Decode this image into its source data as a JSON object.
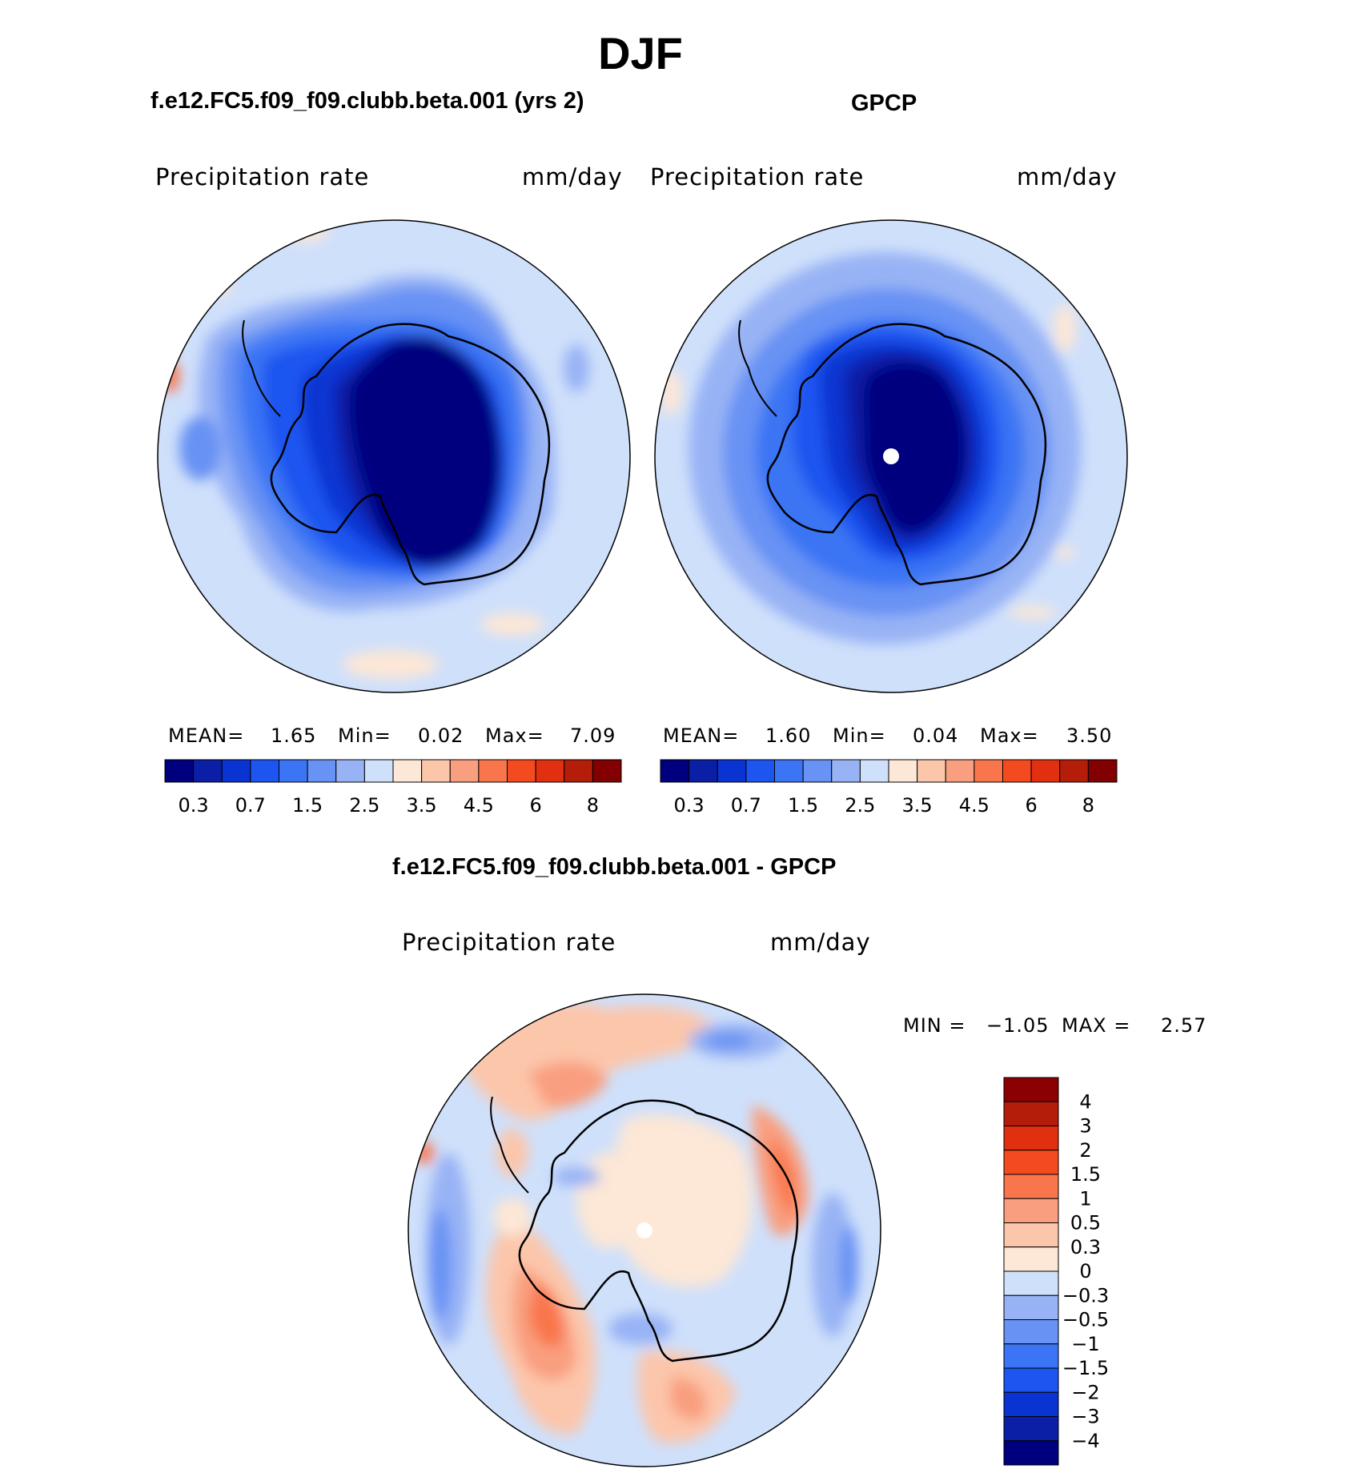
{
  "figure": {
    "season": "DJF",
    "panel_model": {
      "title": "f.e12.FC5.f09_f09.clubb.beta.001 (yrs 2)",
      "variable": "Precipitation rate",
      "units": "mm/day",
      "stats": {
        "mean_label": "MEAN=",
        "mean": "1.65",
        "min_label": "Min=",
        "min": "0.02",
        "max_label": "Max=",
        "max": "7.09"
      }
    },
    "panel_obs": {
      "title": "GPCP",
      "variable": "Precipitation rate",
      "units": "mm/day",
      "stats": {
        "mean_label": "MEAN=",
        "mean": "1.60",
        "min_label": "Min=",
        "min": "0.04",
        "max_label": "Max=",
        "max": "3.50"
      }
    },
    "panel_diff": {
      "title": "f.e12.FC5.f09_f09.clubb.beta.001 - GPCP",
      "variable": "Precipitation rate",
      "units": "mm/day",
      "min_label": "MIN =",
      "min": "−1.05",
      "max_label": "MAX =",
      "max": "2.57"
    },
    "abs_colorbar": {
      "colors": [
        "#00007f",
        "#0a1fa5",
        "#0a34d1",
        "#1c55f0",
        "#3b74f4",
        "#6892f4",
        "#98b3f5",
        "#cfe0fb",
        "#fde7d6",
        "#fcc6ab",
        "#f99f7f",
        "#f9764c",
        "#f34a1f",
        "#e0300f",
        "#b51d0b",
        "#820001"
      ],
      "tick_labels": [
        "0.3",
        "0.7",
        "1.5",
        "2.5",
        "3.5",
        "4.5",
        "6",
        "8"
      ]
    },
    "diff_colorbar": {
      "colors_top_to_bottom": [
        "#8b0000",
        "#b51d0b",
        "#e0300f",
        "#f34a1f",
        "#f9764c",
        "#f99f7f",
        "#fcc6ab",
        "#fde7d6",
        "#cfe0fb",
        "#98b3f5",
        "#6892f4",
        "#3b74f4",
        "#1c55f0",
        "#0a34d1",
        "#0a1fa5",
        "#00007f"
      ],
      "tick_labels": [
        "4",
        "3",
        "2",
        "1.5",
        "1",
        "0.5",
        "0.3",
        "0",
        "−0.3",
        "−0.5",
        "−1",
        "−1.5",
        "−2",
        "−3",
        "−4"
      ]
    }
  }
}
